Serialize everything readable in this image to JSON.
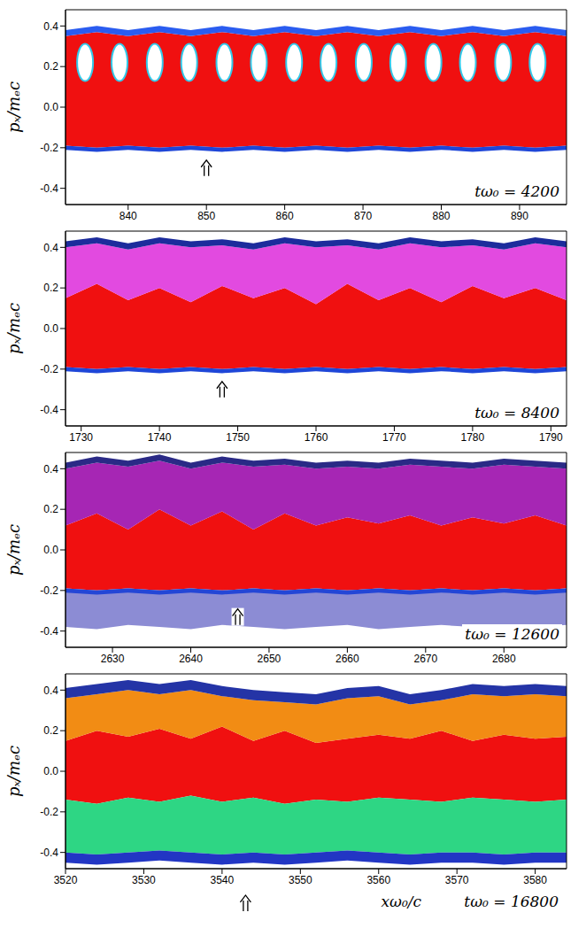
{
  "chart_data": [
    {
      "type": "area",
      "y_label": "pₓ/mₑc",
      "annotation": "tω₀ = 4200",
      "xlim": [
        832,
        896
      ],
      "xticks": [
        840,
        850,
        860,
        870,
        880,
        890
      ],
      "ylim": [
        -0.48,
        0.48
      ],
      "yticks": [
        -0.4,
        -0.2,
        {
          "value": 0,
          "label": "0.0"
        },
        0.2,
        0.4
      ],
      "x": [
        832,
        836,
        840,
        844,
        848,
        852,
        856,
        860,
        864,
        868,
        872,
        876,
        880,
        884,
        888,
        892,
        896
      ],
      "bands": [
        {
          "color": "#f01010",
          "lower": [
            -0.19,
            -0.2,
            -0.19,
            -0.2,
            -0.19,
            -0.2,
            -0.19,
            -0.2,
            -0.19,
            -0.2,
            -0.19,
            -0.2,
            -0.19,
            -0.2,
            -0.19,
            -0.2,
            -0.19
          ],
          "upper": [
            0.35,
            0.37,
            0.35,
            0.37,
            0.35,
            0.37,
            0.35,
            0.37,
            0.35,
            0.37,
            0.35,
            0.37,
            0.35,
            0.37,
            0.35,
            0.37,
            0.35
          ]
        },
        {
          "color": "#2a5cf0",
          "lower": [
            0.35,
            0.37,
            0.35,
            0.37,
            0.35,
            0.37,
            0.35,
            0.37,
            0.35,
            0.37,
            0.35,
            0.37,
            0.35,
            0.37,
            0.35,
            0.37,
            0.35
          ],
          "upper": [
            0.38,
            0.4,
            0.38,
            0.4,
            0.38,
            0.4,
            0.38,
            0.4,
            0.38,
            0.4,
            0.38,
            0.4,
            0.38,
            0.4,
            0.38,
            0.4,
            0.38
          ]
        },
        {
          "color": "#1e46d8",
          "lower": [
            -0.21,
            -0.22,
            -0.21,
            -0.22,
            -0.21,
            -0.22,
            -0.21,
            -0.22,
            -0.21,
            -0.22,
            -0.21,
            -0.22,
            -0.21,
            -0.22,
            -0.21,
            -0.22,
            -0.21
          ],
          "upper": [
            -0.19,
            -0.2,
            -0.19,
            -0.2,
            -0.19,
            -0.2,
            -0.19,
            -0.2,
            -0.19,
            -0.2,
            -0.19,
            -0.2,
            -0.19,
            -0.2,
            -0.19,
            -0.2,
            -0.19
          ]
        }
      ],
      "eyes": {
        "color": "#ffffff",
        "x": [
          834.5,
          838.9,
          843.4,
          847.8,
          852.3,
          856.7,
          861.2,
          865.6,
          870.1,
          874.5,
          879.0,
          883.4,
          887.9,
          892.3
        ],
        "y": 0.22
      },
      "arrow": {
        "x": 850,
        "y": -0.3
      }
    },
    {
      "type": "area",
      "y_label": "pₓ/mₑc",
      "annotation": "tω₀ = 8400",
      "xlim": [
        1728,
        1792
      ],
      "xticks": [
        1730,
        1740,
        1750,
        1760,
        1770,
        1780,
        1790
      ],
      "ylim": [
        -0.48,
        0.48
      ],
      "yticks": [
        -0.4,
        -0.2,
        {
          "value": 0,
          "label": "0.0"
        },
        0.2,
        0.4
      ],
      "x": [
        1728,
        1732,
        1736,
        1740,
        1744,
        1748,
        1752,
        1756,
        1760,
        1764,
        1768,
        1772,
        1776,
        1780,
        1784,
        1788,
        1792
      ],
      "bands": [
        {
          "color": "#f01010",
          "lower": [
            -0.19,
            -0.2,
            -0.19,
            -0.2,
            -0.19,
            -0.2,
            -0.19,
            -0.2,
            -0.19,
            -0.2,
            -0.19,
            -0.2,
            -0.19,
            -0.2,
            -0.19,
            -0.2,
            -0.19
          ],
          "upper": [
            0.15,
            0.22,
            0.14,
            0.2,
            0.13,
            0.21,
            0.15,
            0.2,
            0.12,
            0.22,
            0.14,
            0.2,
            0.13,
            0.21,
            0.15,
            0.2,
            0.14
          ]
        },
        {
          "color": "#e24ae0",
          "lower": [
            0.15,
            0.22,
            0.14,
            0.2,
            0.13,
            0.21,
            0.15,
            0.2,
            0.12,
            0.22,
            0.14,
            0.2,
            0.13,
            0.21,
            0.15,
            0.2,
            0.14
          ],
          "upper": [
            0.4,
            0.42,
            0.39,
            0.42,
            0.4,
            0.41,
            0.39,
            0.42,
            0.4,
            0.41,
            0.39,
            0.42,
            0.4,
            0.41,
            0.39,
            0.42,
            0.4
          ]
        },
        {
          "color": "#1c2c9c",
          "lower": [
            0.4,
            0.42,
            0.39,
            0.42,
            0.4,
            0.41,
            0.39,
            0.42,
            0.4,
            0.41,
            0.39,
            0.42,
            0.4,
            0.41,
            0.39,
            0.42,
            0.4
          ],
          "upper": [
            0.43,
            0.45,
            0.42,
            0.45,
            0.43,
            0.44,
            0.42,
            0.45,
            0.43,
            0.44,
            0.42,
            0.45,
            0.43,
            0.44,
            0.42,
            0.45,
            0.43
          ]
        },
        {
          "color": "#1e46d8",
          "lower": [
            -0.21,
            -0.22,
            -0.21,
            -0.22,
            -0.21,
            -0.22,
            -0.21,
            -0.22,
            -0.21,
            -0.22,
            -0.21,
            -0.22,
            -0.21,
            -0.22,
            -0.21,
            -0.22,
            -0.21
          ],
          "upper": [
            -0.19,
            -0.2,
            -0.19,
            -0.2,
            -0.19,
            -0.2,
            -0.19,
            -0.2,
            -0.19,
            -0.2,
            -0.19,
            -0.2,
            -0.19,
            -0.2,
            -0.19,
            -0.2,
            -0.19
          ]
        }
      ],
      "arrow": {
        "x": 1748,
        "y": -0.3
      }
    },
    {
      "type": "area",
      "y_label": "pₓ/mₑc",
      "annotation": "tω₀ = 12600",
      "xlim": [
        2624,
        2688
      ],
      "xticks": [
        2630,
        2640,
        2650,
        2660,
        2670,
        2680
      ],
      "ylim": [
        -0.48,
        0.48
      ],
      "yticks": [
        -0.4,
        -0.2,
        {
          "value": 0,
          "label": "0.0"
        },
        0.2,
        0.4
      ],
      "x": [
        2624,
        2628,
        2632,
        2636,
        2640,
        2644,
        2648,
        2652,
        2656,
        2660,
        2664,
        2668,
        2672,
        2676,
        2680,
        2684,
        2688
      ],
      "bands": [
        {
          "color": "#f01010",
          "lower": [
            -0.19,
            -0.2,
            -0.19,
            -0.2,
            -0.19,
            -0.2,
            -0.19,
            -0.2,
            -0.19,
            -0.2,
            -0.19,
            -0.2,
            -0.19,
            -0.2,
            -0.19,
            -0.2,
            -0.19
          ],
          "upper": [
            0.12,
            0.18,
            0.1,
            0.2,
            0.12,
            0.19,
            0.1,
            0.18,
            0.12,
            0.16,
            0.13,
            0.17,
            0.12,
            0.16,
            0.13,
            0.17,
            0.12
          ]
        },
        {
          "color": "#a626b4",
          "lower": [
            0.12,
            0.18,
            0.1,
            0.2,
            0.12,
            0.19,
            0.1,
            0.18,
            0.12,
            0.16,
            0.13,
            0.17,
            0.12,
            0.16,
            0.13,
            0.17,
            0.12
          ],
          "upper": [
            0.4,
            0.43,
            0.41,
            0.44,
            0.4,
            0.43,
            0.41,
            0.42,
            0.4,
            0.41,
            0.4,
            0.42,
            0.41,
            0.4,
            0.42,
            0.41,
            0.4
          ]
        },
        {
          "color": "#2a2a86",
          "lower": [
            0.4,
            0.43,
            0.41,
            0.44,
            0.4,
            0.43,
            0.41,
            0.42,
            0.4,
            0.41,
            0.4,
            0.42,
            0.41,
            0.4,
            0.42,
            0.41,
            0.4
          ],
          "upper": [
            0.43,
            0.46,
            0.44,
            0.47,
            0.43,
            0.46,
            0.44,
            0.45,
            0.43,
            0.44,
            0.43,
            0.45,
            0.44,
            0.43,
            0.45,
            0.44,
            0.43
          ]
        },
        {
          "color": "#8c8cd4",
          "lower": [
            -0.38,
            -0.39,
            -0.37,
            -0.38,
            -0.39,
            -0.37,
            -0.38,
            -0.39,
            -0.38,
            -0.37,
            -0.39,
            -0.38,
            -0.37,
            -0.38,
            -0.39,
            -0.38,
            -0.37
          ],
          "upper": [
            -0.19,
            -0.2,
            -0.19,
            -0.2,
            -0.19,
            -0.2,
            -0.19,
            -0.2,
            -0.19,
            -0.2,
            -0.19,
            -0.2,
            -0.19,
            -0.2,
            -0.19,
            -0.2,
            -0.19
          ]
        },
        {
          "color": "#2446d6",
          "lower": [
            -0.21,
            -0.22,
            -0.21,
            -0.22,
            -0.21,
            -0.22,
            -0.21,
            -0.22,
            -0.21,
            -0.22,
            -0.21,
            -0.22,
            -0.21,
            -0.22,
            -0.21,
            -0.22,
            -0.21
          ],
          "upper": [
            -0.19,
            -0.2,
            -0.19,
            -0.2,
            -0.19,
            -0.2,
            -0.19,
            -0.2,
            -0.19,
            -0.2,
            -0.19,
            -0.2,
            -0.19,
            -0.2,
            -0.19,
            -0.2,
            -0.19
          ]
        }
      ],
      "arrow": {
        "x": 2646,
        "y": -0.33
      }
    },
    {
      "type": "area",
      "y_label": "pₓ/mₑc",
      "x_label": "xω₀/c",
      "annotation": "tω₀ = 16800",
      "xlim": [
        3520,
        3584
      ],
      "xticks": [
        3520,
        3530,
        3540,
        3550,
        3560,
        3570,
        3580
      ],
      "ylim": [
        -0.48,
        0.48
      ],
      "yticks": [
        -0.4,
        -0.2,
        {
          "value": 0,
          "label": "0.0"
        },
        0.2,
        0.4
      ],
      "x": [
        3520,
        3524,
        3528,
        3532,
        3536,
        3540,
        3544,
        3548,
        3552,
        3556,
        3560,
        3564,
        3568,
        3572,
        3576,
        3580,
        3584
      ],
      "bands": [
        {
          "color": "#f01010",
          "lower": [
            -0.14,
            -0.16,
            -0.13,
            -0.15,
            -0.12,
            -0.15,
            -0.13,
            -0.16,
            -0.14,
            -0.15,
            -0.13,
            -0.14,
            -0.15,
            -0.13,
            -0.14,
            -0.15,
            -0.14
          ],
          "upper": [
            0.15,
            0.2,
            0.17,
            0.21,
            0.16,
            0.22,
            0.15,
            0.2,
            0.14,
            0.16,
            0.18,
            0.16,
            0.2,
            0.15,
            0.18,
            0.16,
            0.17
          ]
        },
        {
          "color": "#f28c14",
          "lower": [
            0.15,
            0.2,
            0.17,
            0.21,
            0.16,
            0.22,
            0.15,
            0.2,
            0.14,
            0.16,
            0.18,
            0.16,
            0.2,
            0.15,
            0.18,
            0.16,
            0.17
          ],
          "upper": [
            0.36,
            0.38,
            0.4,
            0.38,
            0.4,
            0.37,
            0.35,
            0.34,
            0.33,
            0.36,
            0.37,
            0.33,
            0.35,
            0.38,
            0.37,
            0.38,
            0.37
          ]
        },
        {
          "color": "#2434a6",
          "lower": [
            0.36,
            0.38,
            0.4,
            0.38,
            0.4,
            0.37,
            0.35,
            0.34,
            0.33,
            0.36,
            0.37,
            0.33,
            0.35,
            0.38,
            0.37,
            0.38,
            0.37
          ],
          "upper": [
            0.41,
            0.43,
            0.45,
            0.43,
            0.45,
            0.42,
            0.4,
            0.39,
            0.38,
            0.41,
            0.42,
            0.38,
            0.4,
            0.43,
            0.42,
            0.43,
            0.42
          ]
        },
        {
          "color": "#2ed684",
          "lower": [
            -0.4,
            -0.41,
            -0.4,
            -0.39,
            -0.4,
            -0.41,
            -0.4,
            -0.41,
            -0.4,
            -0.39,
            -0.4,
            -0.41,
            -0.4,
            -0.4,
            -0.41,
            -0.4,
            -0.4
          ],
          "upper": [
            -0.14,
            -0.16,
            -0.13,
            -0.15,
            -0.12,
            -0.15,
            -0.13,
            -0.16,
            -0.14,
            -0.15,
            -0.13,
            -0.14,
            -0.15,
            -0.13,
            -0.14,
            -0.15,
            -0.14
          ]
        },
        {
          "color": "#2236c4",
          "lower": [
            -0.45,
            -0.46,
            -0.45,
            -0.44,
            -0.45,
            -0.46,
            -0.45,
            -0.46,
            -0.45,
            -0.44,
            -0.45,
            -0.46,
            -0.45,
            -0.45,
            -0.46,
            -0.45,
            -0.45
          ],
          "upper": [
            -0.4,
            -0.41,
            -0.4,
            -0.39,
            -0.4,
            -0.41,
            -0.4,
            -0.41,
            -0.4,
            -0.39,
            -0.4,
            -0.41,
            -0.4,
            -0.4,
            -0.41,
            -0.4,
            -0.4
          ]
        }
      ],
      "arrow": {
        "x": 3543,
        "y": -0.65
      }
    }
  ]
}
